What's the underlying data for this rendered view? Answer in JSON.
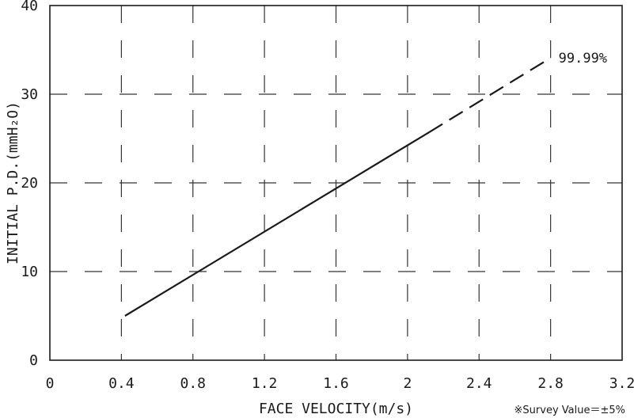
{
  "chart_data": {
    "type": "line",
    "title": "",
    "xlabel": "FACE VELOCITY(m/s)",
    "ylabel": "INITIAL P.D.(mmH₂O)",
    "xlim": [
      0,
      3.2
    ],
    "ylim": [
      0,
      40
    ],
    "x_ticks": [
      0,
      0.4,
      0.8,
      1.2,
      1.6,
      2.0,
      2.4,
      2.8,
      3.2
    ],
    "x_tick_labels": [
      "0",
      "0.4",
      "0.8",
      "1.2",
      "1.6",
      "2",
      "2.4",
      "2.8",
      "3.2"
    ],
    "y_ticks": [
      0,
      10,
      20,
      30,
      40
    ],
    "y_tick_labels": [
      "0",
      "10",
      "20",
      "30",
      "40"
    ],
    "grid": true,
    "grid_style": "dashed",
    "series": [
      {
        "name": "99.99%",
        "solid": [
          {
            "x": 0.42,
            "y": 5.0
          },
          {
            "x": 2.12,
            "y": 25.7
          }
        ],
        "dashed": [
          {
            "x": 2.12,
            "y": 25.7
          },
          {
            "x": 2.8,
            "y": 34.1
          }
        ],
        "color": "#1a1a1a"
      }
    ],
    "annotation": "※Survey Value＝±5%"
  }
}
